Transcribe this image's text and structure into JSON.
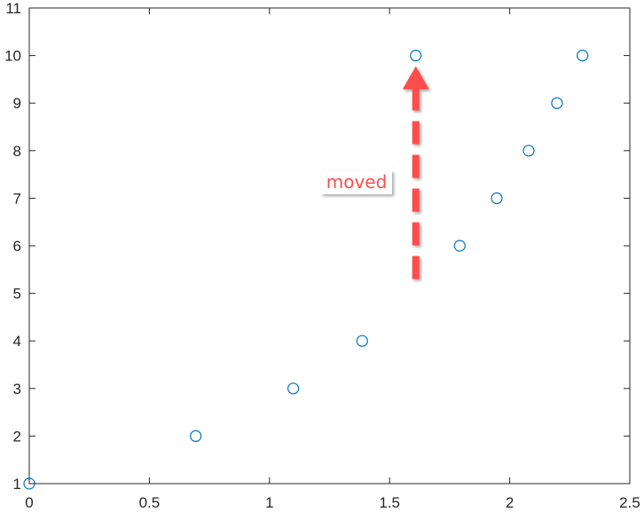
{
  "chart_data": {
    "type": "scatter",
    "title": "",
    "xlabel": "",
    "ylabel": "",
    "xlim": [
      0,
      2.5
    ],
    "ylim": [
      1,
      11
    ],
    "x_ticks": [
      "0",
      "0.5",
      "1",
      "1.5",
      "2",
      "2.5"
    ],
    "y_ticks": [
      "1",
      "2",
      "3",
      "4",
      "5",
      "6",
      "7",
      "8",
      "9",
      "10",
      "11"
    ],
    "grid": false,
    "legend": "none",
    "series": [
      {
        "marker": "open-circle",
        "color": "#0072BD",
        "points": [
          {
            "x": 0,
            "y": 1
          },
          {
            "x": 0.693,
            "y": 2
          },
          {
            "x": 1.099,
            "y": 3
          },
          {
            "x": 1.386,
            "y": 4
          },
          {
            "x": 1.609,
            "y": 10
          },
          {
            "x": 1.792,
            "y": 6
          },
          {
            "x": 1.946,
            "y": 7
          },
          {
            "x": 2.079,
            "y": 8
          },
          {
            "x": 2.197,
            "y": 9
          },
          {
            "x": 2.303,
            "y": 10
          }
        ]
      }
    ],
    "annotations": [
      {
        "text": "moved",
        "color": "#ff4d4d",
        "arrow": {
          "x": 1.609,
          "y_from": 5.3,
          "y_to": 9.7,
          "style": "dashed"
        }
      }
    ]
  }
}
